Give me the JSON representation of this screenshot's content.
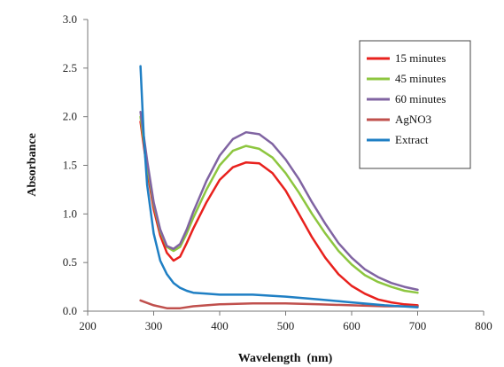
{
  "chart_data": {
    "type": "line",
    "xlabel": "Wavelength  (nm)",
    "ylabel": "Absorbance",
    "xlim": [
      200,
      800
    ],
    "ylim": [
      0,
      3
    ],
    "xticks": [
      200,
      300,
      400,
      500,
      600,
      700,
      800
    ],
    "xtick_labels": [
      "200",
      "300",
      "400",
      "500",
      "600",
      "700",
      "800"
    ],
    "yticks": [
      0,
      0.5,
      1,
      1.5,
      2,
      2.5,
      3
    ],
    "ytick_labels": [
      "0.0",
      "0.5",
      "1.0",
      "1.5",
      "2.0",
      "2.5",
      "3.0"
    ],
    "grid": false,
    "legend_position": "top-right",
    "series": [
      {
        "name": "15 minutes",
        "color": "#e8211d",
        "x": [
          280,
          290,
          300,
          310,
          320,
          330,
          340,
          350,
          360,
          380,
          400,
          420,
          440,
          460,
          480,
          500,
          520,
          540,
          560,
          580,
          600,
          620,
          640,
          660,
          680,
          700
        ],
        "y": [
          1.95,
          1.45,
          1.05,
          0.78,
          0.6,
          0.52,
          0.56,
          0.7,
          0.85,
          1.12,
          1.35,
          1.48,
          1.53,
          1.52,
          1.42,
          1.24,
          1.0,
          0.76,
          0.55,
          0.38,
          0.26,
          0.18,
          0.12,
          0.09,
          0.07,
          0.06
        ]
      },
      {
        "name": "45 minutes",
        "color": "#8dc63f",
        "x": [
          280,
          290,
          300,
          310,
          320,
          330,
          340,
          350,
          360,
          380,
          400,
          420,
          440,
          460,
          480,
          500,
          520,
          540,
          560,
          580,
          600,
          620,
          640,
          660,
          680,
          700
        ],
        "y": [
          2.0,
          1.5,
          1.1,
          0.82,
          0.66,
          0.62,
          0.66,
          0.8,
          0.96,
          1.25,
          1.5,
          1.65,
          1.7,
          1.67,
          1.58,
          1.42,
          1.22,
          1.0,
          0.8,
          0.62,
          0.48,
          0.37,
          0.3,
          0.25,
          0.21,
          0.19
        ]
      },
      {
        "name": "60 minutes",
        "color": "#8064a2",
        "x": [
          280,
          290,
          300,
          310,
          320,
          330,
          340,
          350,
          360,
          380,
          400,
          420,
          440,
          460,
          480,
          500,
          520,
          540,
          560,
          580,
          600,
          620,
          640,
          660,
          680,
          700
        ],
        "y": [
          2.05,
          1.55,
          1.12,
          0.84,
          0.67,
          0.64,
          0.69,
          0.84,
          1.02,
          1.34,
          1.6,
          1.77,
          1.84,
          1.82,
          1.72,
          1.56,
          1.36,
          1.12,
          0.9,
          0.7,
          0.55,
          0.43,
          0.35,
          0.29,
          0.25,
          0.22
        ]
      },
      {
        "name": "AgNO3",
        "color": "#c0504d",
        "x": [
          280,
          300,
          320,
          340,
          360,
          400,
          450,
          500,
          550,
          600,
          650,
          700
        ],
        "y": [
          0.11,
          0.06,
          0.03,
          0.03,
          0.05,
          0.07,
          0.08,
          0.08,
          0.07,
          0.06,
          0.05,
          0.05
        ]
      },
      {
        "name": "Extract",
        "color": "#1f7fc4",
        "x": [
          280,
          285,
          290,
          300,
          310,
          320,
          330,
          340,
          350,
          360,
          380,
          400,
          450,
          500,
          550,
          600,
          650,
          700
        ],
        "y": [
          2.52,
          1.8,
          1.3,
          0.8,
          0.52,
          0.38,
          0.29,
          0.24,
          0.21,
          0.19,
          0.18,
          0.17,
          0.17,
          0.15,
          0.12,
          0.09,
          0.06,
          0.04
        ]
      }
    ]
  }
}
